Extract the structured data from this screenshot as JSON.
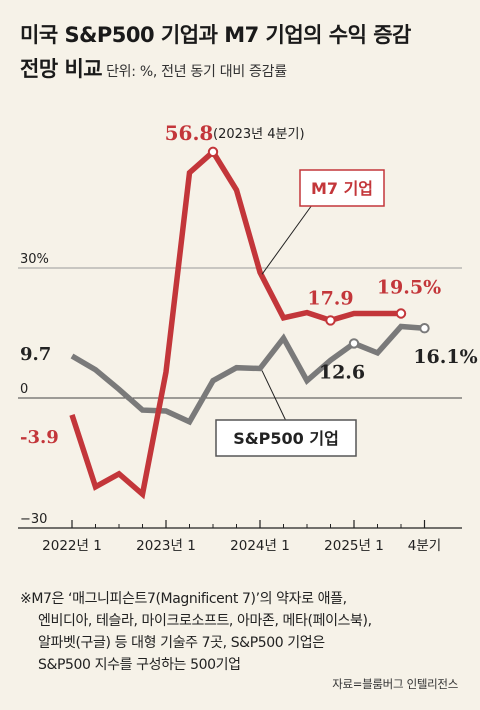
{
  "title_line1": "미국 S&P500 기업과 M7 기업의 수익 증감",
  "title_line2": "전망 비교",
  "unit_label": "단위: %, 전년 동기 대비 증감률",
  "chart_data": {
    "type": "line",
    "x_labels": [
      "2022년 1",
      "2023년 1",
      "2024년 1",
      "2025년 1",
      "4분기"
    ],
    "y_ticks": [
      {
        "value": 30,
        "label": "30%"
      },
      {
        "value": 0,
        "label": "0"
      },
      {
        "value": -30,
        "label": "−30"
      }
    ],
    "ylim": [
      -30,
      60
    ],
    "series": [
      {
        "name": "M7 기업",
        "color": "#c3363a",
        "values": [
          -3.9,
          -20.5,
          -17.5,
          -22.2,
          6.0,
          52.0,
          56.8,
          48.0,
          29.0,
          18.5,
          19.7,
          17.9,
          19.5,
          19.5,
          19.5
        ],
        "markers": [
          {
            "index": 6,
            "label": "56.8",
            "note": "(2023년 4분기)"
          },
          {
            "index": 11,
            "label": "17.9"
          },
          {
            "index": 14,
            "label": "19.5%"
          }
        ],
        "start_label": "-3.9"
      },
      {
        "name": "S&P500 기업",
        "color": "#7a7a7a",
        "values": [
          9.7,
          6.5,
          2.0,
          -2.8,
          -3.0,
          -5.5,
          4.0,
          7.0,
          6.8,
          13.8,
          4.0,
          8.7,
          12.6,
          10.4,
          16.5,
          16.1
        ],
        "markers": [
          {
            "index": 12,
            "label": "12.6"
          },
          {
            "index": 15,
            "label": "16.1%"
          }
        ],
        "start_label": "9.7"
      }
    ]
  },
  "footnote_lines": [
    "※M7은 ‘매그니피슨트7(Magnificent 7)’의 약자로 애플,",
    "엔비디아, 테슬라, 마이크로소프트, 아마존, 메타(페이스북),",
    "알파벳(구글) 등 대형 기술주 7곳, S&P500 기업은",
    "S&P500 지수를 구성하는 500기업"
  ],
  "source": "자료=블룸버그 인텔리전스",
  "colors": {
    "background": "#f6f2e8",
    "m7": "#c3363a",
    "sp500": "#7a7a7a"
  }
}
